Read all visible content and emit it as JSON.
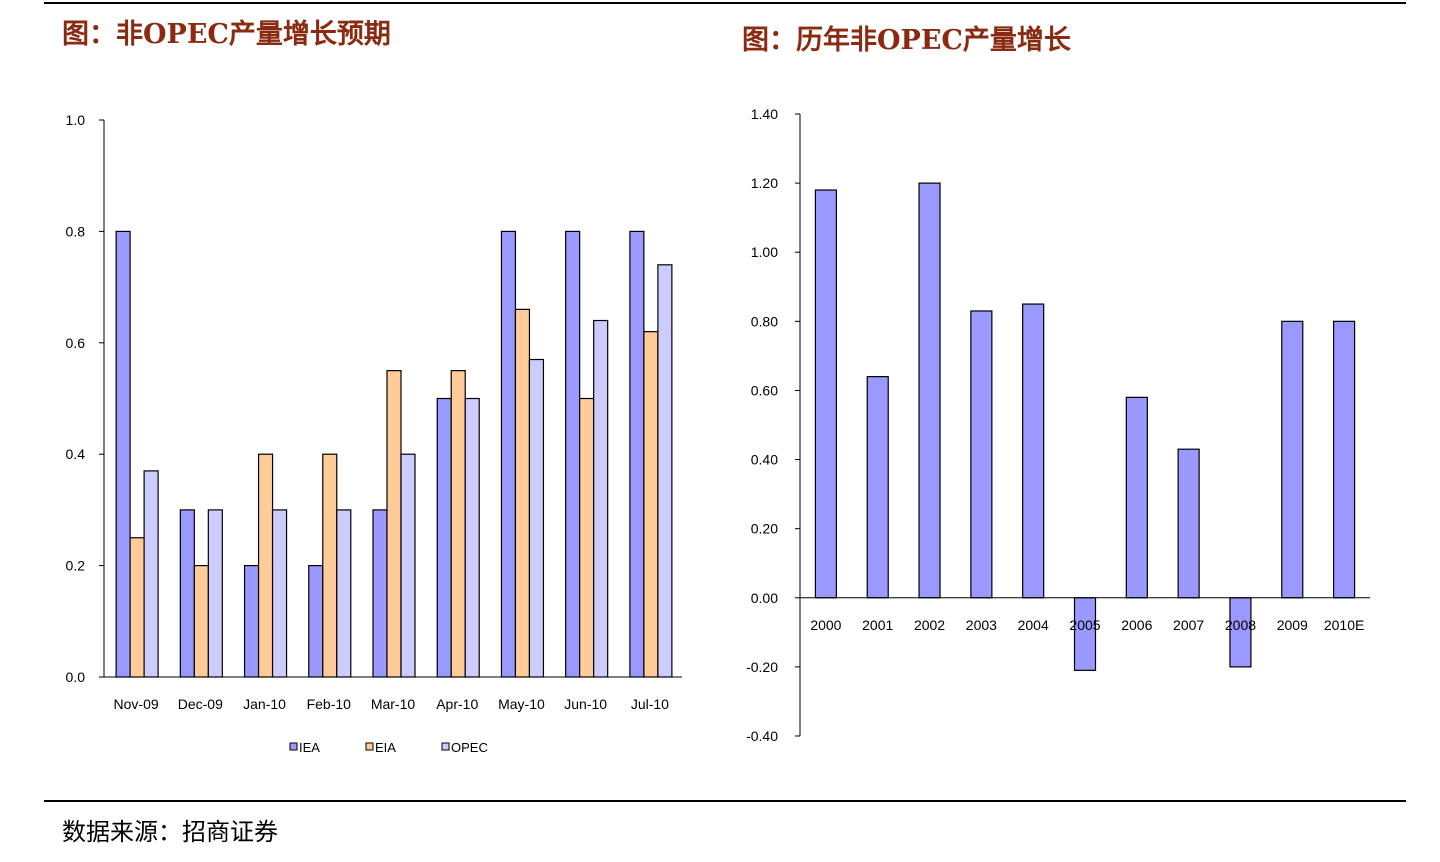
{
  "titles": {
    "left": "图：非OPEC产量增长预期",
    "right": "图：历年非OPEC产量增长"
  },
  "source": "数据来源：招商证券",
  "chart_data": [
    {
      "type": "bar",
      "categories": [
        "Nov-09",
        "Dec-09",
        "Jan-10",
        "Feb-10",
        "Mar-10",
        "Apr-10",
        "May-10",
        "Jun-10",
        "Jul-10"
      ],
      "series": [
        {
          "name": "IEA",
          "color": "#9999ff",
          "values": [
            0.8,
            0.3,
            0.2,
            0.2,
            0.3,
            0.5,
            0.8,
            0.8,
            0.8
          ]
        },
        {
          "name": "EIA",
          "color": "#ffcc99",
          "values": [
            0.25,
            0.2,
            0.4,
            0.4,
            0.55,
            0.55,
            0.66,
            0.5,
            0.62
          ]
        },
        {
          "name": "OPEC",
          "color": "#ccccff",
          "values": [
            0.37,
            0.3,
            0.3,
            0.3,
            0.4,
            0.5,
            0.57,
            0.64,
            0.74
          ]
        }
      ],
      "ylim": [
        0.0,
        1.0
      ],
      "yticks": [
        "0.0",
        "0.2",
        "0.4",
        "0.6",
        "0.8",
        "1.0"
      ],
      "legend": "bottom",
      "grid": false
    },
    {
      "type": "bar",
      "categories": [
        "2000",
        "2001",
        "2002",
        "2003",
        "2004",
        "2005",
        "2006",
        "2007",
        "2008",
        "2009",
        "2010E"
      ],
      "series": [
        {
          "color": "#9999ff",
          "values": [
            1.18,
            0.64,
            1.2,
            0.83,
            0.85,
            -0.21,
            0.58,
            0.43,
            -0.2,
            0.8,
            0.8
          ]
        }
      ],
      "ylim": [
        -0.4,
        1.4
      ],
      "yticks": [
        "-0.40",
        "-0.20",
        "0.00",
        "0.20",
        "0.40",
        "0.60",
        "0.80",
        "1.00",
        "1.20",
        "1.40"
      ],
      "legend": "none",
      "grid": false
    }
  ]
}
